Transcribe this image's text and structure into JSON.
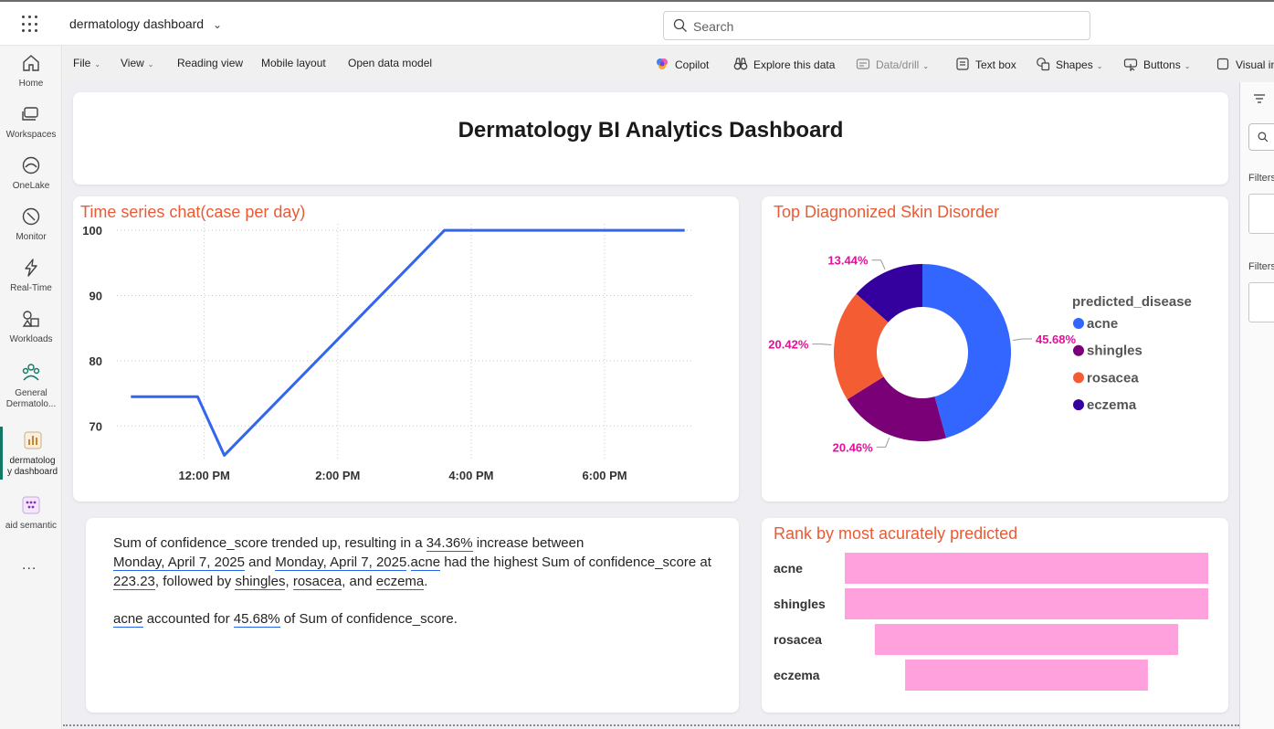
{
  "topbar": {
    "app_title": "dermatology dashboard",
    "search_placeholder": "Search"
  },
  "leftnav": {
    "items": [
      {
        "label": "Home",
        "icon": "home-icon"
      },
      {
        "label": "Workspaces",
        "icon": "workspaces-icon"
      },
      {
        "label": "OneLake",
        "icon": "onelake-icon"
      },
      {
        "label": "Monitor",
        "icon": "monitor-icon"
      },
      {
        "label": "Real-Time",
        "icon": "real-time-icon"
      },
      {
        "label": "Workloads",
        "icon": "workloads-icon"
      },
      {
        "label": "General Dermatolo...",
        "label_l1": "General",
        "label_l2": "Dermatolo...",
        "icon": "workspace-icon"
      },
      {
        "label_l1": "dermatolog",
        "label_l2": "y dashboard",
        "icon": "report-icon",
        "active": true
      },
      {
        "label": "aid semantic",
        "icon": "semantic-model-icon"
      }
    ],
    "more": "..."
  },
  "ribbon": {
    "file": "File",
    "view": "View",
    "reading_view": "Reading view",
    "mobile_layout": "Mobile layout",
    "open_data_model": "Open data model",
    "copilot": "Copilot",
    "explore": "Explore this data",
    "data_drill": "Data/drill",
    "text_box": "Text box",
    "shapes": "Shapes",
    "buttons": "Buttons",
    "visual": "Visual in"
  },
  "right_panel": {
    "filters_label_1": "Filters",
    "filters_label_2": "Filters"
  },
  "dashboard": {
    "title": "Dermatology BI Analytics Dashboard"
  },
  "time_series": {
    "title": "Time series chat(case per day)"
  },
  "donut": {
    "title": "Top Diagnonized Skin Disorder",
    "legend_title": "predicted_disease",
    "colors": {
      "acne": "#3366ff",
      "shingles": "#7a0077",
      "rosacea": "#f45c33",
      "eczema": "#34009e",
      "label": "#e60f9c"
    }
  },
  "rank": {
    "title": "Rank by most acurately predicted",
    "bar_color": "#ffa1dd"
  },
  "narrative": {
    "p1_t1": "Sum of confidence_score trended up, resulting in a ",
    "p1_pct": "34.36%",
    "p1_t2": " increase between",
    "p1_d1": "Monday, April 7, 2025",
    "p1_and": " and ",
    "p1_d2": "Monday, April 7, 2025",
    "p1_dot": ".",
    "p1_acne": "acne",
    "p1_t3": " had the highest Sum of confidence_score at ",
    "p1_val": "223.23",
    "p1_t4": ", followed by ",
    "p1_shingles": "shingles",
    "p1_c1": ", ",
    "p1_rosacea": "rosacea",
    "p1_c2": ", and ",
    "p1_eczema": "eczema",
    "p1_end": ".",
    "p2_acne": "acne",
    "p2_t1": " accounted for ",
    "p2_pct": "45.68%",
    "p2_t2": " of Sum of confidence_score."
  },
  "chart_data": [
    {
      "type": "line",
      "title": "Time series chat(case per day)",
      "x_ticks": [
        "12:00 PM",
        "2:00 PM",
        "4:00 PM",
        "6:00 PM"
      ],
      "y_ticks": [
        70,
        80,
        90,
        100
      ],
      "ylim": [
        65,
        101
      ],
      "xlim_hours": [
        10.8,
        19.3
      ],
      "series": [
        {
          "x": [
            10.9,
            11.9,
            12.3,
            15.6,
            19.2
          ],
          "y": [
            74.5,
            74.5,
            65.5,
            100,
            100
          ]
        }
      ],
      "color": "#3366ee",
      "grid": true
    },
    {
      "type": "pie",
      "title": "Top Diagnonized Skin Disorder",
      "legend_title": "predicted_disease",
      "legend_position": "right",
      "slices": [
        {
          "name": "acne",
          "value": 45.68,
          "label": "45.68%"
        },
        {
          "name": "shingles",
          "value": 20.46,
          "label": "20.46%"
        },
        {
          "name": "rosacea",
          "value": 20.42,
          "label": "20.42%"
        },
        {
          "name": "eczema",
          "value": 13.44,
          "label": "13.44%"
        }
      ]
    },
    {
      "type": "bar",
      "title": "Rank by most acurately predicted",
      "orientation": "funnel",
      "categories": [
        "acne",
        "shingles",
        "rosacea",
        "eczema"
      ],
      "values": [
        100,
        100,
        83.5,
        66.8
      ]
    }
  ]
}
